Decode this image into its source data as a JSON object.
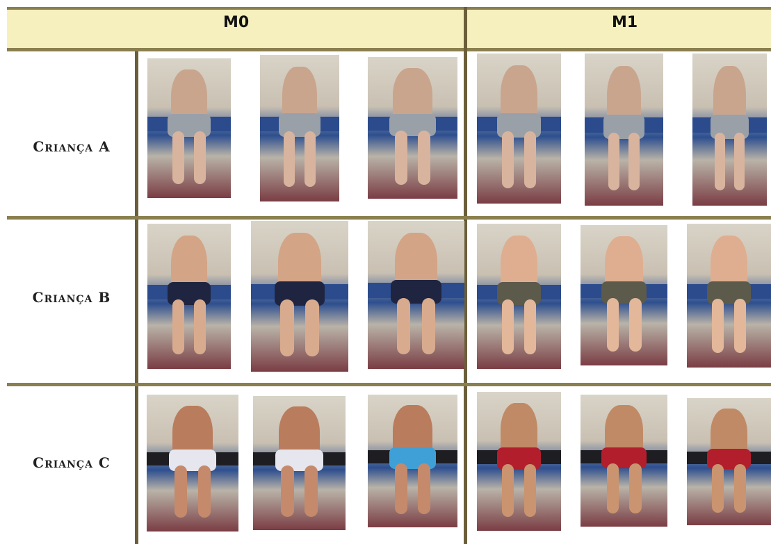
{
  "columns": {
    "m0": "M0",
    "m1": "M1"
  },
  "rows": [
    {
      "label": "Criança A"
    },
    {
      "label": "Criança B"
    },
    {
      "label": "Criança C"
    }
  ],
  "colors": {
    "header_bg": "#f6f0bf",
    "rule": "#8a7f4e",
    "divider": "#6b5f3a"
  }
}
